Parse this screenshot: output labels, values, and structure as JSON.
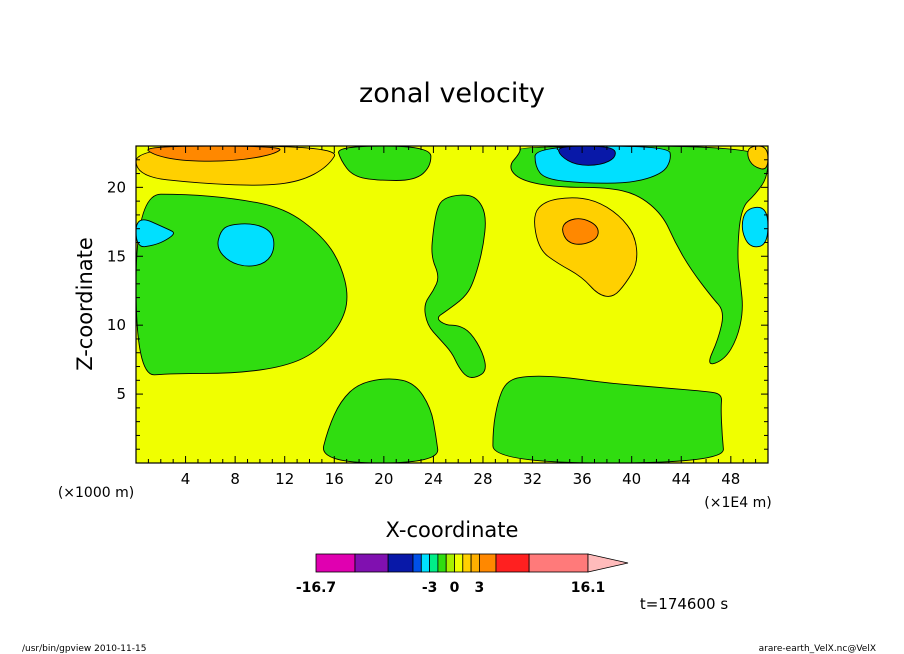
{
  "chart_data": {
    "type": "heatmap",
    "title": "zonal velocity",
    "xlabel": "X-coordinate",
    "ylabel": "Z-coordinate",
    "x_units_note": "(×1E4 m)",
    "y_units_note": "(×1000 m)",
    "xlim": [
      0,
      51
    ],
    "ylim": [
      0,
      23
    ],
    "x_ticks": [
      4,
      8,
      12,
      16,
      20,
      24,
      28,
      32,
      36,
      40,
      44,
      48
    ],
    "y_ticks": [
      5,
      10,
      15,
      20
    ],
    "colorbar": {
      "min": -16.7,
      "max": 16.1,
      "tick_labels": [
        "-16.7",
        "-3",
        "0",
        "3",
        "16.1"
      ],
      "tick_values": [
        -16.7,
        -3,
        0,
        3,
        16.1
      ],
      "colors": [
        "#e000b0",
        "#8010b0",
        "#0818a8",
        "#0050e8",
        "#00e0ff",
        "#00ee88",
        "#30dd10",
        "#a8f000",
        "#f0ff00",
        "#ffd000",
        "#ffb000",
        "#ff8800",
        "#ff2020",
        "#ff7a7a",
        "#ffbbbb"
      ]
    },
    "levels": {
      "yellow": 0,
      "green": -1,
      "cyan": -3,
      "blue": -5,
      "light_orange": 1,
      "dark_orange": 2
    },
    "regions": [
      {
        "level": "green",
        "label": "left-mid green",
        "points": [
          [
            0,
            19.5
          ],
          [
            4,
            19.5
          ],
          [
            8,
            19.2
          ],
          [
            12,
            18.5
          ],
          [
            15,
            16.5
          ],
          [
            16.5,
            14.5
          ],
          [
            17.2,
            12
          ],
          [
            16.5,
            10
          ],
          [
            14.5,
            8
          ],
          [
            12,
            7
          ],
          [
            8,
            6.5
          ],
          [
            3,
            6.5
          ],
          [
            0,
            6.3
          ]
        ]
      },
      {
        "level": "green",
        "label": "top-mid green",
        "points": [
          [
            16.2,
            23
          ],
          [
            23.8,
            23
          ],
          [
            23.8,
            21.5
          ],
          [
            22.5,
            20.5
          ],
          [
            19.5,
            20.5
          ],
          [
            17.5,
            20.8
          ],
          [
            16.5,
            22
          ]
        ]
      },
      {
        "level": "green",
        "label": "central green tongue",
        "points": [
          [
            24.8,
            19.2
          ],
          [
            26.2,
            19.5
          ],
          [
            27.5,
            19.3
          ],
          [
            28.3,
            18
          ],
          [
            28,
            15.5
          ],
          [
            27.2,
            13
          ],
          [
            26.5,
            12
          ],
          [
            25,
            11
          ],
          [
            24.2,
            10.5
          ],
          [
            25,
            10
          ],
          [
            26,
            10
          ],
          [
            27,
            9.5
          ],
          [
            28,
            8
          ],
          [
            28.3,
            6.7
          ],
          [
            27.5,
            6.2
          ],
          [
            26.7,
            6.2
          ],
          [
            26,
            7
          ],
          [
            25.5,
            8
          ],
          [
            24.5,
            9
          ],
          [
            23.5,
            10
          ],
          [
            23.2,
            11.5
          ],
          [
            24,
            12.5
          ],
          [
            24.5,
            13.5
          ],
          [
            23.8,
            15
          ],
          [
            24,
            17
          ],
          [
            24.3,
            18.5
          ]
        ]
      },
      {
        "level": "green",
        "label": "right-top green",
        "points": [
          [
            31,
            23
          ],
          [
            51,
            23
          ],
          [
            51,
            20.8
          ],
          [
            50,
            19.5
          ],
          [
            48.8,
            18.5
          ],
          [
            48.5,
            15
          ],
          [
            48.8,
            13
          ],
          [
            49,
            11
          ],
          [
            48.5,
            9
          ],
          [
            47.5,
            7.5
          ],
          [
            46,
            7
          ],
          [
            47,
            9
          ],
          [
            47.5,
            11
          ],
          [
            46.5,
            12
          ],
          [
            44.8,
            14
          ],
          [
            43.5,
            16
          ],
          [
            42.5,
            18
          ],
          [
            40.5,
            19.5
          ],
          [
            38,
            20
          ],
          [
            34,
            20
          ],
          [
            31,
            20.5
          ],
          [
            30,
            21.5
          ],
          [
            31,
            22.5
          ]
        ]
      },
      {
        "level": "green",
        "label": "bottom-left green",
        "points": [
          [
            14.8,
            0
          ],
          [
            24.5,
            0
          ],
          [
            24.2,
            2
          ],
          [
            23.8,
            4
          ],
          [
            22.5,
            5.8
          ],
          [
            20.5,
            6.2
          ],
          [
            18,
            5.8
          ],
          [
            16.5,
            4.5
          ],
          [
            15.5,
            2.5
          ]
        ]
      },
      {
        "level": "green",
        "label": "bottom-right green",
        "points": [
          [
            28.8,
            0
          ],
          [
            47.5,
            0
          ],
          [
            47.3,
            2
          ],
          [
            47.2,
            4
          ],
          [
            47.3,
            5
          ],
          [
            46,
            5.2
          ],
          [
            42,
            5.5
          ],
          [
            38,
            5.8
          ],
          [
            34,
            6.3
          ],
          [
            31,
            6.3
          ],
          [
            29.8,
            5.8
          ],
          [
            29.2,
            4.5
          ],
          [
            28.8,
            2.5
          ]
        ]
      },
      {
        "level": "cyan",
        "label": "left-edge cyan",
        "points": [
          [
            0,
            18
          ],
          [
            2.5,
            17
          ],
          [
            3.2,
            16.7
          ],
          [
            2.5,
            16.2
          ],
          [
            1.5,
            15.8
          ],
          [
            0,
            15.6
          ]
        ]
      },
      {
        "level": "cyan",
        "label": "cyan blob",
        "points": [
          [
            6.8,
            16.8
          ],
          [
            7.5,
            17.3
          ],
          [
            9.5,
            17.4
          ],
          [
            11,
            16.8
          ],
          [
            11.2,
            15.5
          ],
          [
            10.5,
            14.5
          ],
          [
            9,
            14.2
          ],
          [
            7.5,
            14.6
          ],
          [
            6.5,
            15.6
          ]
        ]
      },
      {
        "level": "cyan",
        "label": "top-right cyan",
        "points": [
          [
            32.2,
            23
          ],
          [
            43,
            23
          ],
          [
            43.2,
            22
          ],
          [
            42.5,
            21
          ],
          [
            40,
            20.3
          ],
          [
            36,
            20.3
          ],
          [
            33,
            20.6
          ],
          [
            32.2,
            21.5
          ]
        ]
      },
      {
        "level": "cyan",
        "label": "right-edge cyan",
        "points": [
          [
            49.2,
            18.5
          ],
          [
            51,
            18.6
          ],
          [
            51,
            15.8
          ],
          [
            49.5,
            15.6
          ],
          [
            48.8,
            17
          ]
        ]
      },
      {
        "level": "blue",
        "label": "top blue",
        "points": [
          [
            34,
            23
          ],
          [
            38.5,
            23
          ],
          [
            38.8,
            22.2
          ],
          [
            37.5,
            21.6
          ],
          [
            35.5,
            21.6
          ],
          [
            34.2,
            22.3
          ]
        ]
      },
      {
        "level": "light_orange",
        "label": "top-left light orange",
        "points": [
          [
            0,
            23
          ],
          [
            16.5,
            23
          ],
          [
            15.5,
            21.5
          ],
          [
            13.2,
            20.4
          ],
          [
            10,
            20.1
          ],
          [
            5,
            20.3
          ],
          [
            0,
            20.8
          ]
        ]
      },
      {
        "level": "dark_orange",
        "label": "top-left dark orange",
        "points": [
          [
            0.5,
            23
          ],
          [
            12,
            23
          ],
          [
            11.2,
            22.4
          ],
          [
            8,
            21.9
          ],
          [
            4,
            21.9
          ],
          [
            1.5,
            22.3
          ]
        ]
      },
      {
        "level": "light_orange",
        "label": "mid-right light orange",
        "points": [
          [
            32,
            18
          ],
          [
            33,
            19
          ],
          [
            35,
            19.3
          ],
          [
            37,
            19.1
          ],
          [
            39,
            18
          ],
          [
            40.3,
            16.5
          ],
          [
            40.5,
            14.5
          ],
          [
            39.5,
            13
          ],
          [
            38.5,
            12
          ],
          [
            37.3,
            12.2
          ],
          [
            36,
            13.5
          ],
          [
            34,
            14.5
          ],
          [
            32.5,
            15.5
          ]
        ]
      },
      {
        "level": "dark_orange",
        "label": "mid-right dark orange core",
        "points": [
          [
            34.3,
            17
          ],
          [
            34.8,
            17.6
          ],
          [
            36,
            17.8
          ],
          [
            37.3,
            17.2
          ],
          [
            37.3,
            16.3
          ],
          [
            36,
            15.8
          ],
          [
            34.8,
            16
          ]
        ]
      },
      {
        "level": "light_orange",
        "label": "top-right corner light orange",
        "points": [
          [
            49.5,
            23
          ],
          [
            51,
            23
          ],
          [
            51,
            21.2
          ],
          [
            49.8,
            21.5
          ],
          [
            49.3,
            22.3
          ]
        ]
      }
    ]
  },
  "footer": {
    "left": "/usr/bin/gpview  2010-11-15",
    "right": "arare-earth_VelX.nc@VelX"
  },
  "time_label": "t=174600 s"
}
